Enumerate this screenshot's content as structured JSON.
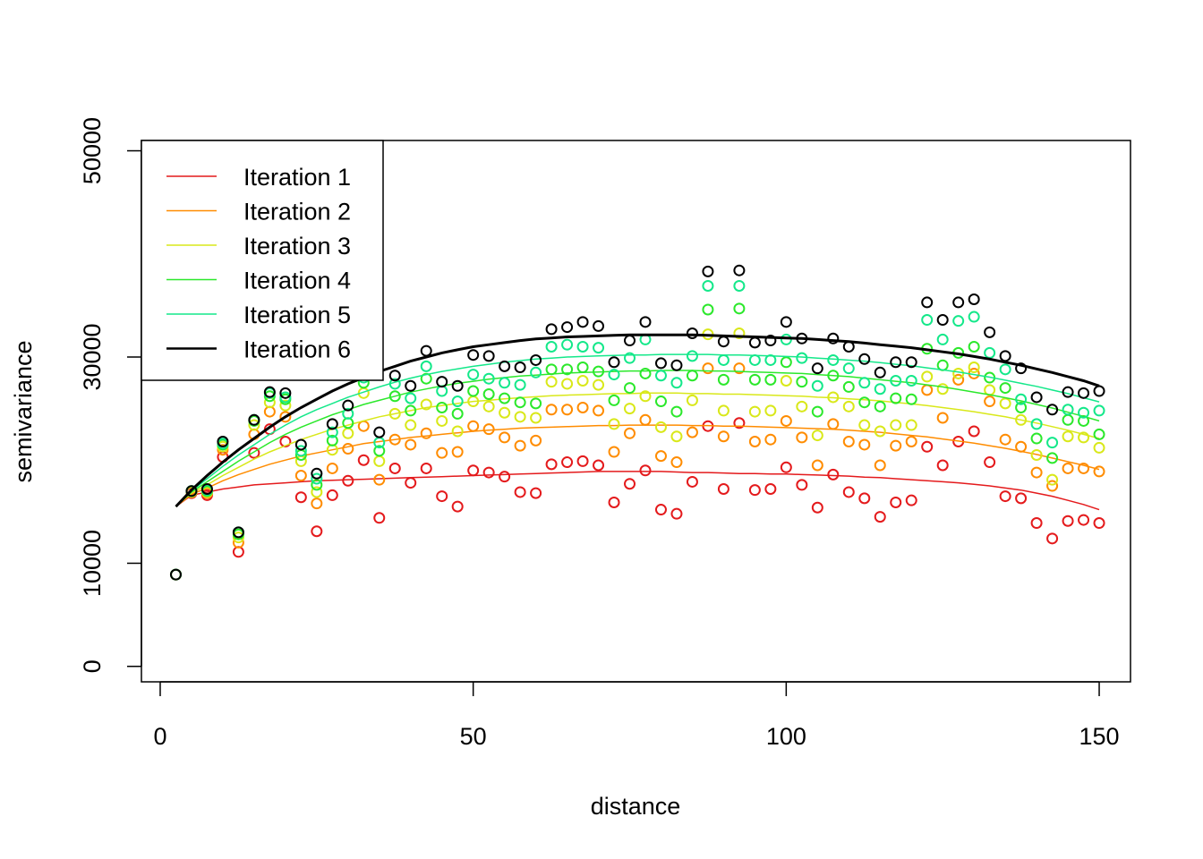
{
  "chart_data": {
    "type": "scatter",
    "title": "",
    "xlabel": "distance",
    "ylabel": "semivariance",
    "xlim": [
      -3,
      155
    ],
    "ylim": [
      -1500,
      51000
    ],
    "x_ticks": [
      0,
      50,
      100,
      150
    ],
    "y_ticks": [
      0,
      10000,
      30000,
      50000
    ],
    "x_tick_labels": [
      "0",
      "50",
      "100",
      "150"
    ],
    "y_tick_labels": [
      "0",
      "10000",
      "30000",
      "50000"
    ],
    "grid": false,
    "legend_position": "top-left",
    "x": [
      2.5,
      5,
      7.5,
      10,
      12.5,
      15,
      17.5,
      20,
      22.5,
      25,
      27.5,
      30,
      32.5,
      35,
      37.5,
      40,
      42.5,
      45,
      47.5,
      50,
      52.5,
      55,
      57.5,
      60,
      62.5,
      65,
      67.5,
      70,
      72.5,
      75,
      77.5,
      80,
      82.5,
      85,
      87.5,
      90,
      92.5,
      95,
      97.5,
      100,
      102.5,
      105,
      107.5,
      110,
      112.5,
      115,
      117.5,
      120,
      122.5,
      125,
      127.5,
      130,
      132.5,
      135,
      137.5,
      140,
      142.5,
      145,
      147.5,
      150
    ],
    "series": [
      {
        "name": "Iteration 1",
        "color": "#E41A1C",
        "values": [
          8900,
          16800,
          16600,
          20300,
          11100,
          20700,
          23000,
          21800,
          16400,
          13100,
          16600,
          18000,
          20000,
          14400,
          19200,
          17800,
          19200,
          16500,
          15500,
          19000,
          18800,
          18400,
          16900,
          16800,
          19600,
          19800,
          19900,
          19500,
          15900,
          17700,
          19000,
          15200,
          14800,
          17900,
          23300,
          17200,
          23600,
          17100,
          17200,
          19300,
          17600,
          15400,
          18600,
          16900,
          16300,
          14500,
          15900,
          16100,
          21300,
          19500,
          21800,
          22800,
          19800,
          16500,
          16300,
          13900,
          12400,
          14100,
          14200,
          13900
        ],
        "fit": [
          15500,
          16600,
          16900,
          17200,
          17400,
          17600,
          17700,
          17800,
          17900,
          18000,
          18050,
          18100,
          18150,
          18200,
          18250,
          18300,
          18350,
          18400,
          18450,
          18500,
          18550,
          18600,
          18650,
          18700,
          18750,
          18800,
          18850,
          18900,
          18900,
          18900,
          18900,
          18900,
          18850,
          18800,
          18800,
          18750,
          18700,
          18700,
          18650,
          18650,
          18600,
          18550,
          18500,
          18450,
          18350,
          18300,
          18200,
          18100,
          18000,
          17900,
          17800,
          17650,
          17500,
          17300,
          17100,
          16800,
          16500,
          16100,
          15700,
          15200
        ]
      },
      {
        "name": "Iteration 2",
        "color": "#FF8C00",
        "values": [
          8900,
          16900,
          16800,
          21000,
          12000,
          22500,
          24700,
          24200,
          18500,
          15800,
          19200,
          21100,
          23300,
          18100,
          22000,
          21500,
          22600,
          20700,
          20800,
          23300,
          23000,
          22200,
          21400,
          21900,
          24900,
          24900,
          25100,
          24800,
          20800,
          22600,
          23900,
          20400,
          19800,
          22700,
          28900,
          22300,
          28900,
          21800,
          22000,
          23800,
          22200,
          19500,
          23500,
          21800,
          21500,
          19500,
          21400,
          21800,
          26800,
          24100,
          27800,
          28400,
          25700,
          22000,
          21300,
          18800,
          17500,
          19200,
          19200,
          18900
        ],
        "fit": [
          15500,
          16700,
          17300,
          18000,
          18600,
          19100,
          19600,
          20000,
          20400,
          20700,
          21000,
          21300,
          21600,
          21800,
          22000,
          22200,
          22350,
          22500,
          22650,
          22800,
          22900,
          23000,
          23100,
          23150,
          23200,
          23250,
          23300,
          23350,
          23350,
          23400,
          23400,
          23400,
          23400,
          23350,
          23350,
          23300,
          23300,
          23250,
          23200,
          23150,
          23100,
          23050,
          23000,
          22900,
          22800,
          22700,
          22550,
          22400,
          22250,
          22050,
          21850,
          21650,
          21400,
          21150,
          20850,
          20550,
          20200,
          19850,
          19500,
          19100
        ]
      },
      {
        "name": "Iteration 3",
        "color": "#D9E81A",
        "values": [
          8900,
          16900,
          16900,
          21300,
          12500,
          23400,
          25600,
          25300,
          19900,
          16900,
          21000,
          22600,
          26500,
          19900,
          24500,
          23400,
          25400,
          23800,
          22800,
          25700,
          25200,
          24600,
          24200,
          24100,
          27600,
          27400,
          27700,
          27300,
          23500,
          25000,
          26200,
          23200,
          22300,
          25800,
          32200,
          24800,
          32300,
          24700,
          24800,
          27700,
          25200,
          22400,
          26100,
          25200,
          23400,
          22800,
          23400,
          23400,
          28100,
          26900,
          28400,
          29000,
          26800,
          25500,
          23900,
          20500,
          18100,
          22300,
          22200,
          21200
        ],
        "fit": [
          15500,
          16800,
          17600,
          18500,
          19300,
          20100,
          20800,
          21400,
          22000,
          22500,
          23000,
          23400,
          23800,
          24200,
          24500,
          24800,
          25100,
          25300,
          25500,
          25700,
          25800,
          25950,
          26050,
          26150,
          26250,
          26300,
          26350,
          26400,
          26450,
          26450,
          26500,
          26500,
          26500,
          26450,
          26450,
          26400,
          26400,
          26350,
          26300,
          26250,
          26200,
          26100,
          26050,
          25950,
          25850,
          25750,
          25600,
          25450,
          25300,
          25100,
          24900,
          24700,
          24450,
          24200,
          23900,
          23600,
          23250,
          22900,
          22500,
          22100
        ]
      },
      {
        "name": "Iteration 4",
        "color": "#2BE82B",
        "values": [
          8900,
          17000,
          17000,
          21500,
          12800,
          23800,
          26200,
          25900,
          20500,
          17600,
          21900,
          23600,
          27500,
          20900,
          26200,
          24800,
          27900,
          25100,
          24500,
          26700,
          26400,
          26000,
          25600,
          25500,
          28800,
          28800,
          29000,
          28600,
          25800,
          27000,
          28400,
          25700,
          24700,
          28200,
          34600,
          27800,
          34700,
          27800,
          27800,
          29500,
          27600,
          24700,
          28200,
          27100,
          25600,
          25200,
          26000,
          25900,
          30800,
          29200,
          30400,
          31000,
          28000,
          27000,
          25100,
          22100,
          20200,
          23900,
          23800,
          22500
        ],
        "fit": [
          15500,
          16900,
          17900,
          18900,
          19900,
          20800,
          21700,
          22500,
          23200,
          23800,
          24400,
          24900,
          25400,
          25800,
          26200,
          26600,
          26900,
          27200,
          27450,
          27650,
          27850,
          28000,
          28150,
          28250,
          28350,
          28450,
          28500,
          28550,
          28600,
          28650,
          28650,
          28700,
          28700,
          28700,
          28650,
          28650,
          28600,
          28550,
          28500,
          28450,
          28400,
          28300,
          28200,
          28100,
          27950,
          27800,
          27650,
          27500,
          27300,
          27100,
          26850,
          26600,
          26350,
          26050,
          25750,
          25400,
          25050,
          24650,
          24250,
          23800
        ]
      },
      {
        "name": "Iteration 5",
        "color": "#14E88A",
        "values": [
          8900,
          17000,
          17100,
          21600,
          13000,
          23900,
          26500,
          26100,
          20900,
          18200,
          22700,
          24500,
          28000,
          21700,
          27400,
          26000,
          29100,
          26700,
          25700,
          28300,
          27900,
          27500,
          27300,
          28500,
          31000,
          31200,
          31000,
          30900,
          28300,
          29900,
          31700,
          28200,
          27500,
          30100,
          36900,
          29700,
          36900,
          29700,
          29700,
          31700,
          29900,
          27200,
          29700,
          28900,
          27500,
          26900,
          27700,
          27700,
          33600,
          31700,
          33500,
          33900,
          30400,
          28800,
          25900,
          23500,
          21700,
          24900,
          24600,
          24800
        ],
        "fit": [
          15500,
          17000,
          18200,
          19400,
          20500,
          21500,
          22500,
          23400,
          24200,
          24900,
          25500,
          26100,
          26600,
          27100,
          27550,
          27950,
          28300,
          28600,
          28850,
          29100,
          29300,
          29500,
          29650,
          29800,
          29900,
          30000,
          30050,
          30100,
          30150,
          30200,
          30200,
          30250,
          30250,
          30250,
          30250,
          30200,
          30200,
          30150,
          30100,
          30050,
          30000,
          29900,
          29800,
          29700,
          29600,
          29450,
          29300,
          29150,
          28950,
          28750,
          28550,
          28300,
          28050,
          27750,
          27450,
          27150,
          26800,
          26450,
          26050,
          25650
        ]
      },
      {
        "name": "Iteration 6",
        "color": "#000000",
        "values": [
          8900,
          17000,
          17200,
          21800,
          13000,
          23900,
          26600,
          26500,
          21500,
          18700,
          23500,
          25300,
          29500,
          22700,
          28200,
          27200,
          30600,
          27600,
          27200,
          30200,
          30100,
          29100,
          29000,
          29700,
          32700,
          32900,
          33400,
          33000,
          29500,
          31600,
          33400,
          29400,
          29200,
          32300,
          38300,
          31500,
          38400,
          31400,
          31600,
          33400,
          31800,
          28900,
          31800,
          31000,
          29800,
          28500,
          29500,
          29500,
          35300,
          33600,
          35300,
          35600,
          32400,
          30100,
          28900,
          26100,
          24900,
          26600,
          26500,
          26700
        ],
        "fit": [
          15500,
          17100,
          18500,
          19800,
          21000,
          22100,
          23200,
          24200,
          25100,
          25900,
          26700,
          27400,
          28000,
          28600,
          29100,
          29600,
          30000,
          30400,
          30700,
          31000,
          31200,
          31400,
          31600,
          31750,
          31850,
          31950,
          32000,
          32050,
          32100,
          32150,
          32150,
          32150,
          32150,
          32150,
          32100,
          32050,
          32000,
          31950,
          31900,
          31850,
          31800,
          31700,
          31600,
          31500,
          31350,
          31200,
          31050,
          30900,
          30700,
          30500,
          30300,
          30050,
          29800,
          29500,
          29200,
          28850,
          28500,
          28100,
          27700,
          27200
        ]
      }
    ]
  }
}
